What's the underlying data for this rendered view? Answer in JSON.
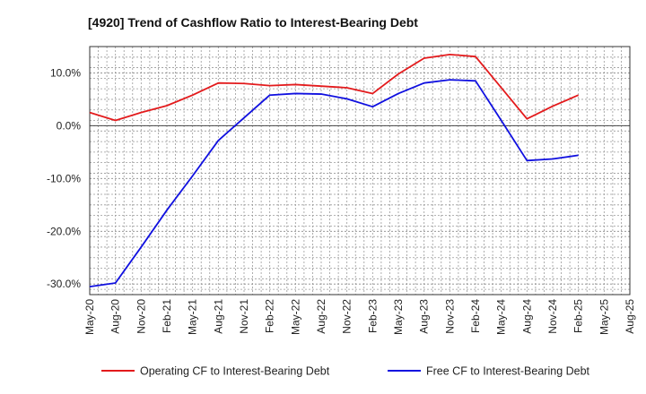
{
  "chart_data": {
    "type": "line",
    "title": "[4920]  Trend of Cashflow Ratio to Interest-Bearing Debt",
    "xlabel": "",
    "ylabel": "",
    "ylim": [
      -32,
      15
    ],
    "yticks": [
      10,
      0,
      -10,
      -20,
      -30
    ],
    "ytick_labels": [
      "10.0%",
      "0.0%",
      "-10.0%",
      "-20.0%",
      "-30.0%"
    ],
    "grid": true,
    "legend_position": "bottom",
    "categories": [
      "May-20",
      "Aug-20",
      "Nov-20",
      "Feb-21",
      "May-21",
      "Aug-21",
      "Nov-21",
      "Feb-22",
      "May-22",
      "Aug-22",
      "Nov-22",
      "Feb-23",
      "May-23",
      "Aug-23",
      "Nov-23",
      "Feb-24",
      "May-24",
      "Aug-24",
      "Nov-24",
      "Feb-25",
      "May-25",
      "Aug-25"
    ],
    "series": [
      {
        "name": "Operating CF to Interest-Bearing Debt",
        "color": "#e31a1c",
        "values": [
          2.5,
          1.0,
          2.5,
          3.8,
          5.8,
          8.1,
          8.0,
          7.6,
          7.8,
          7.5,
          7.2,
          6.1,
          9.8,
          12.8,
          13.5,
          13.1,
          7.2,
          1.3,
          3.7,
          5.8,
          null,
          null
        ]
      },
      {
        "name": "Free CF to Interest-Bearing Debt",
        "color": "#1010e0",
        "values": [
          -30.5,
          -29.8,
          -23.0,
          -16.0,
          -9.5,
          -2.8,
          1.5,
          5.8,
          6.1,
          6.0,
          5.1,
          3.6,
          6.1,
          8.1,
          8.7,
          8.5,
          1.0,
          -6.6,
          -6.3,
          -5.6,
          null,
          null
        ]
      }
    ]
  }
}
